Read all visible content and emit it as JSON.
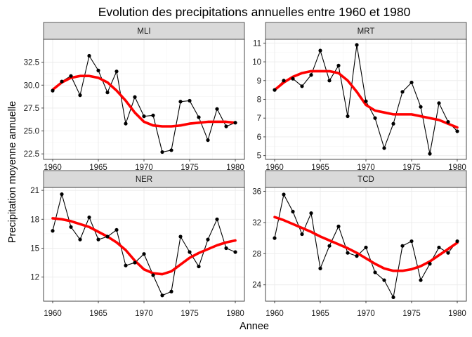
{
  "figure": {
    "title": "Evolution des precipitations annuelles entre 1960 et 1980",
    "xlabel": "Annee",
    "ylabel": "Precipitation moyenne annuelle"
  },
  "colors": {
    "smooth_line": "#ff0000",
    "data_line": "#000000",
    "strip_fill": "#d9d9d9",
    "panel_border": "#333333",
    "grid_major": "#ebebeb",
    "grid_minor": "#f5f5f5"
  },
  "chart_data": [
    {
      "type": "line",
      "facet": "MLI",
      "x": [
        1960,
        1961,
        1962,
        1963,
        1964,
        1965,
        1966,
        1967,
        1968,
        1969,
        1970,
        1971,
        1972,
        1973,
        1974,
        1975,
        1976,
        1977,
        1978,
        1979,
        1980
      ],
      "series": [
        {
          "role": "observed",
          "values": [
            29.4,
            30.4,
            31.0,
            28.9,
            33.2,
            31.6,
            29.2,
            31.5,
            25.8,
            28.7,
            26.6,
            26.7,
            22.7,
            22.9,
            28.2,
            28.3,
            26.5,
            24.0,
            27.4,
            25.5,
            25.9
          ]
        },
        {
          "role": "smooth",
          "values": [
            29.5,
            30.3,
            30.8,
            31.0,
            31.0,
            30.8,
            30.3,
            29.4,
            28.3,
            27.0,
            26.0,
            25.6,
            25.5,
            25.5,
            25.6,
            25.8,
            25.9,
            26.0,
            26.0,
            26.0,
            25.9
          ]
        }
      ],
      "xlim": [
        1959.0,
        1981.0
      ],
      "ylim": [
        21.9,
        35.0
      ],
      "xticks": [
        1960,
        1965,
        1970,
        1975,
        1980
      ],
      "xtick_labels": [
        "1960",
        "1965",
        "1970",
        "1975",
        "1980"
      ],
      "yticks": [
        22.5,
        25.0,
        27.5,
        30.0,
        32.5
      ],
      "ytick_labels": [
        "22.5",
        "25.0",
        "27.5",
        "30.0",
        "32.5"
      ],
      "grid": true
    },
    {
      "type": "line",
      "facet": "MRT",
      "x": [
        1960,
        1961,
        1962,
        1963,
        1964,
        1965,
        1966,
        1967,
        1968,
        1969,
        1970,
        1971,
        1972,
        1973,
        1974,
        1975,
        1976,
        1977,
        1978,
        1979,
        1980
      ],
      "series": [
        {
          "role": "observed",
          "values": [
            8.5,
            9.0,
            9.1,
            8.7,
            9.3,
            10.6,
            9.0,
            9.8,
            7.1,
            10.9,
            7.9,
            7.0,
            5.4,
            6.7,
            8.4,
            8.9,
            7.6,
            5.1,
            7.8,
            6.8,
            6.3
          ]
        },
        {
          "role": "smooth",
          "values": [
            8.5,
            8.9,
            9.2,
            9.4,
            9.5,
            9.5,
            9.5,
            9.4,
            9.0,
            8.4,
            7.7,
            7.4,
            7.3,
            7.2,
            7.2,
            7.2,
            7.1,
            7.0,
            6.9,
            6.7,
            6.5
          ]
        }
      ],
      "xlim": [
        1959.0,
        1981.0
      ],
      "ylim": [
        4.8,
        11.2
      ],
      "xticks": [
        1960,
        1965,
        1970,
        1975,
        1980
      ],
      "xtick_labels": [
        "1960",
        "1965",
        "1970",
        "1975",
        "1980"
      ],
      "yticks": [
        5,
        6,
        7,
        8,
        9,
        10,
        11
      ],
      "ytick_labels": [
        "5",
        "6",
        "7",
        "8",
        "9",
        "10",
        "11"
      ],
      "grid": true
    },
    {
      "type": "line",
      "facet": "NER",
      "x": [
        1960,
        1961,
        1962,
        1963,
        1964,
        1965,
        1966,
        1967,
        1968,
        1969,
        1970,
        1971,
        1972,
        1973,
        1974,
        1975,
        1976,
        1977,
        1978,
        1979,
        1980
      ],
      "series": [
        {
          "role": "observed",
          "values": [
            16.8,
            20.6,
            17.2,
            15.9,
            18.2,
            15.9,
            16.2,
            16.9,
            13.2,
            13.5,
            14.4,
            12.2,
            10.1,
            10.5,
            16.2,
            14.6,
            13.1,
            15.9,
            18.0,
            15.0,
            14.6
          ]
        },
        {
          "role": "smooth",
          "values": [
            18.1,
            18.0,
            17.8,
            17.5,
            17.2,
            16.7,
            16.2,
            15.6,
            14.8,
            13.7,
            12.8,
            12.4,
            12.3,
            12.6,
            13.3,
            14.0,
            14.5,
            14.9,
            15.3,
            15.6,
            15.8
          ]
        }
      ],
      "xlim": [
        1959.0,
        1981.0
      ],
      "ylim": [
        9.5,
        21.3
      ],
      "xticks": [
        1960,
        1965,
        1970,
        1975,
        1980
      ],
      "xtick_labels": [
        "1960",
        "1965",
        "1970",
        "1975",
        "1980"
      ],
      "yticks": [
        12,
        15,
        18,
        21
      ],
      "ytick_labels": [
        "12",
        "15",
        "18",
        "21"
      ],
      "grid": true
    },
    {
      "type": "line",
      "facet": "TCD",
      "x": [
        1960,
        1961,
        1962,
        1963,
        1964,
        1965,
        1966,
        1967,
        1968,
        1969,
        1970,
        1971,
        1972,
        1973,
        1974,
        1975,
        1976,
        1977,
        1978,
        1979,
        1980
      ],
      "series": [
        {
          "role": "observed",
          "values": [
            30.0,
            35.6,
            33.4,
            30.5,
            33.2,
            26.1,
            29.0,
            31.5,
            28.1,
            27.7,
            28.8,
            25.6,
            24.6,
            22.4,
            29.0,
            29.6,
            24.6,
            26.7,
            28.8,
            28.1,
            29.6
          ]
        },
        {
          "role": "smooth",
          "values": [
            32.7,
            32.3,
            31.8,
            31.3,
            30.8,
            30.2,
            29.7,
            29.2,
            28.7,
            28.1,
            27.4,
            26.7,
            26.1,
            25.8,
            25.8,
            26.0,
            26.4,
            27.0,
            27.8,
            28.6,
            29.4
          ]
        }
      ],
      "xlim": [
        1959.0,
        1981.0
      ],
      "ylim": [
        21.9,
        36.5
      ],
      "xticks": [
        1960,
        1965,
        1970,
        1975,
        1980
      ],
      "xtick_labels": [
        "1960",
        "1965",
        "1970",
        "1975",
        "1980"
      ],
      "yticks": [
        24,
        28,
        32,
        36
      ],
      "ytick_labels": [
        "24",
        "28",
        "32",
        "36"
      ],
      "grid": true
    }
  ]
}
